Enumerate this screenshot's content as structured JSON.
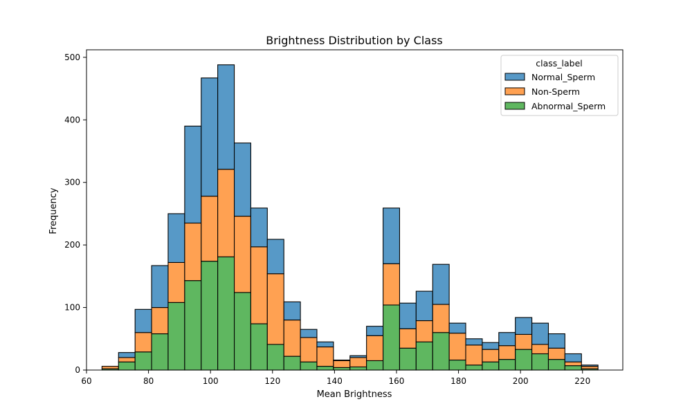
{
  "chart_data": {
    "type": "bar",
    "title": "Brightness Distribution by Class",
    "xlabel": "Mean Brightness",
    "ylabel": "Frequency",
    "xlim": [
      60,
      233
    ],
    "ylim": [
      0,
      512
    ],
    "x_ticks": [
      60,
      80,
      100,
      120,
      140,
      160,
      180,
      200,
      220
    ],
    "y_ticks": [
      0,
      100,
      200,
      300,
      400,
      500
    ],
    "bin_edges": [
      65,
      70.33,
      75.67,
      81,
      86.33,
      91.67,
      97,
      102.33,
      107.67,
      113,
      118.33,
      123.67,
      129,
      134.33,
      139.67,
      145,
      150.33,
      155.67,
      161,
      166.33,
      171.67,
      177,
      182.33,
      187.67,
      193,
      198.33,
      203.67,
      209,
      214.33,
      219.67,
      225
    ],
    "stacked": true,
    "legend_title": "class_label",
    "legend_position": "upper-right",
    "series": [
      {
        "name": "Normal_Sperm",
        "color": "#5799c7",
        "values": [
          0,
          8,
          37,
          67,
          78,
          155,
          189,
          167,
          117,
          62,
          55,
          29,
          13,
          8,
          1,
          3,
          15,
          89,
          41,
          47,
          64,
          16,
          10,
          11,
          21,
          27,
          34,
          23,
          13,
          2
        ]
      },
      {
        "name": "Non-Sperm",
        "color": "#ffa152",
        "values": [
          4,
          7,
          31,
          42,
          64,
          92,
          104,
          140,
          122,
          123,
          113,
          58,
          39,
          31,
          11,
          15,
          40,
          66,
          31,
          34,
          45,
          43,
          32,
          20,
          22,
          24,
          15,
          18,
          6,
          4
        ]
      },
      {
        "name": "Abnormal_Sperm",
        "color": "#5fb760",
        "values": [
          2,
          13,
          29,
          58,
          108,
          143,
          174,
          181,
          124,
          74,
          41,
          22,
          13,
          6,
          4,
          5,
          15,
          104,
          35,
          45,
          60,
          16,
          8,
          13,
          17,
          33,
          26,
          17,
          7,
          2
        ]
      }
    ]
  }
}
